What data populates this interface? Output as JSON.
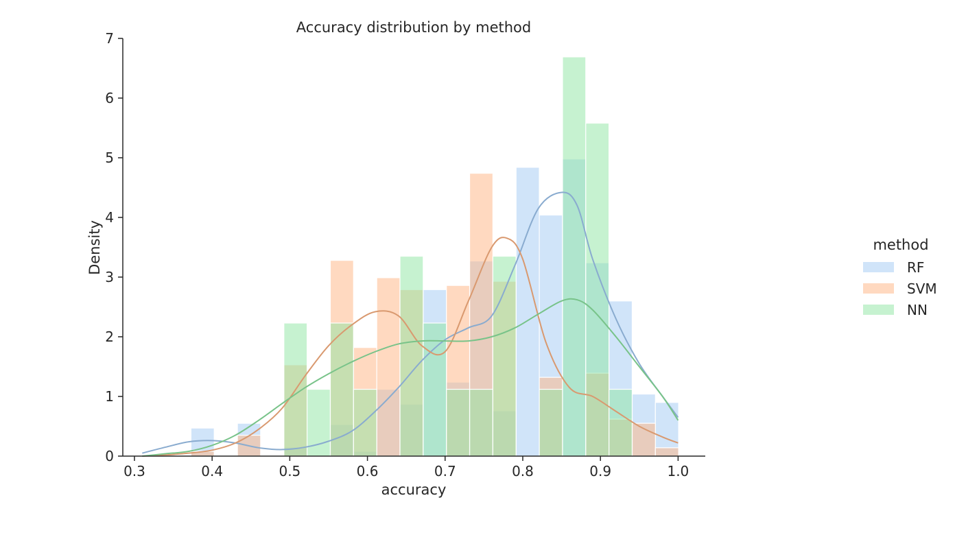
{
  "chart_data": {
    "type": "histogram",
    "title": "Accuracy distribution by method",
    "xlabel": "accuracy",
    "ylabel": "Density",
    "xlim": [
      0.285,
      1.035
    ],
    "ylim": [
      0,
      7
    ],
    "xticks": [
      0.3,
      0.4,
      0.5,
      0.6,
      0.7,
      0.8,
      0.9,
      1.0
    ],
    "xtick_labels": [
      "0.3",
      "0.4",
      "0.5",
      "0.6",
      "0.7",
      "0.8",
      "0.9",
      "1.0"
    ],
    "yticks": [
      0,
      1,
      2,
      3,
      4,
      5,
      6,
      7
    ],
    "ytick_labels": [
      "0",
      "1",
      "2",
      "3",
      "4",
      "5",
      "6",
      "7"
    ],
    "grid": false,
    "kde": true,
    "legend": {
      "title": "method",
      "placement": "right"
    },
    "bin_edges": [
      0.313,
      0.3429,
      0.3728,
      0.4027,
      0.4326,
      0.4625,
      0.4924,
      0.5223,
      0.5522,
      0.5821,
      0.612,
      0.6419,
      0.6718,
      0.7017,
      0.7316,
      0.7615,
      0.7914,
      0.8213,
      0.8512,
      0.8811,
      0.911,
      0.9409,
      0.9708,
      1.0007
    ],
    "series": [
      {
        "name": "RF",
        "color": "#a1c9f4",
        "density": [
          0,
          0,
          0.47,
          0,
          0.55,
          0,
          0.15,
          0,
          0.53,
          0.08,
          1.12,
          0.87,
          2.79,
          1.24,
          3.27,
          0.76,
          4.84,
          4.04,
          4.98,
          3.24,
          2.6,
          1.04,
          0.9
        ],
        "kde_x": [
          0.31,
          0.34,
          0.37,
          0.4,
          0.43,
          0.46,
          0.49,
          0.52,
          0.55,
          0.58,
          0.61,
          0.64,
          0.67,
          0.7,
          0.73,
          0.76,
          0.79,
          0.82,
          0.85,
          0.87,
          0.89,
          0.92,
          0.95,
          0.98,
          1.0
        ],
        "kde_y": [
          0.05,
          0.15,
          0.24,
          0.26,
          0.22,
          0.14,
          0.11,
          0.15,
          0.25,
          0.42,
          0.75,
          1.15,
          1.6,
          1.95,
          2.15,
          2.35,
          3.2,
          4.15,
          4.42,
          4.2,
          3.3,
          2.3,
          1.55,
          1.0,
          0.65
        ]
      },
      {
        "name": "SVM",
        "color": "#ffb482",
        "density": [
          0,
          0,
          0.08,
          0,
          0.35,
          0,
          1.53,
          0,
          3.28,
          1.82,
          2.99,
          2.79,
          0,
          2.86,
          4.74,
          2.93,
          0,
          1.32,
          0,
          1.39,
          0.62,
          0.55,
          0.14
        ],
        "kde_x": [
          0.31,
          0.34,
          0.37,
          0.4,
          0.43,
          0.46,
          0.49,
          0.52,
          0.55,
          0.58,
          0.61,
          0.64,
          0.67,
          0.7,
          0.73,
          0.76,
          0.78,
          0.8,
          0.83,
          0.86,
          0.89,
          0.92,
          0.95,
          0.98,
          1.0
        ],
        "kde_y": [
          0.0,
          0.02,
          0.05,
          0.1,
          0.22,
          0.45,
          0.8,
          1.35,
          1.85,
          2.2,
          2.42,
          2.35,
          1.85,
          1.75,
          2.6,
          3.5,
          3.65,
          3.3,
          1.9,
          1.15,
          1.0,
          0.75,
          0.5,
          0.32,
          0.22
        ]
      },
      {
        "name": "NN",
        "color": "#8de5a1",
        "density": [
          0,
          0,
          0,
          0,
          0,
          0,
          2.23,
          1.12,
          2.23,
          1.12,
          0,
          3.35,
          2.23,
          1.12,
          1.12,
          3.35,
          0,
          1.12,
          6.69,
          5.58,
          1.12,
          0,
          0
        ],
        "kde_x": [
          0.31,
          0.34,
          0.37,
          0.4,
          0.43,
          0.46,
          0.49,
          0.52,
          0.55,
          0.58,
          0.61,
          0.64,
          0.67,
          0.7,
          0.73,
          0.76,
          0.79,
          0.82,
          0.85,
          0.87,
          0.89,
          0.92,
          0.95,
          0.98,
          1.0
        ],
        "kde_y": [
          0.0,
          0.04,
          0.08,
          0.18,
          0.35,
          0.6,
          0.88,
          1.15,
          1.38,
          1.58,
          1.75,
          1.88,
          1.93,
          1.93,
          1.93,
          2.0,
          2.15,
          2.38,
          2.6,
          2.62,
          2.45,
          2.0,
          1.5,
          1.0,
          0.6
        ]
      }
    ]
  }
}
